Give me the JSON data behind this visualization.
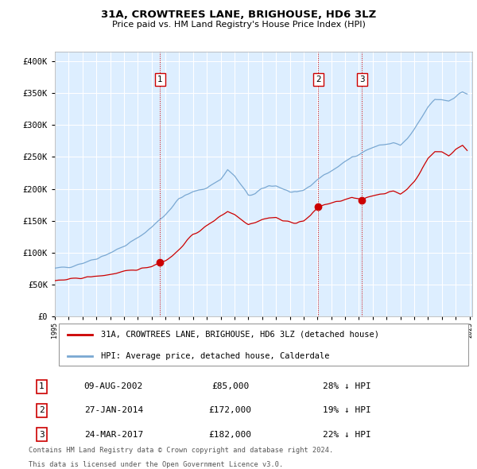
{
  "title": "31A, CROWTREES LANE, BRIGHOUSE, HD6 3LZ",
  "subtitle": "Price paid vs. HM Land Registry's House Price Index (HPI)",
  "plot_bg_color": "#ddeeff",
  "ylabel_ticks": [
    "£0",
    "£50K",
    "£100K",
    "£150K",
    "£200K",
    "£250K",
    "£300K",
    "£350K",
    "£400K"
  ],
  "ytick_values": [
    0,
    50000,
    100000,
    150000,
    200000,
    250000,
    300000,
    350000,
    400000
  ],
  "ylim": [
    0,
    415000
  ],
  "xlim_start": 1995.0,
  "xlim_end": 2025.2,
  "sale_year_floats": [
    2002.604,
    2014.069,
    2017.22
  ],
  "sale_prices": [
    85000,
    172000,
    182000
  ],
  "sale_labels": [
    "1",
    "2",
    "3"
  ],
  "sale_label_info": [
    {
      "label": "1",
      "date": "09-AUG-2002",
      "price": "£85,000",
      "pct": "28%",
      "dir": "↓"
    },
    {
      "label": "2",
      "date": "27-JAN-2014",
      "price": "£172,000",
      "pct": "19%",
      "dir": "↓"
    },
    {
      "label": "3",
      "date": "24-MAR-2017",
      "price": "£182,000",
      "pct": "22%",
      "dir": "↓"
    }
  ],
  "red_line_label": "31A, CROWTREES LANE, BRIGHOUSE, HD6 3LZ (detached house)",
  "blue_line_label": "HPI: Average price, detached house, Calderdale",
  "footer1": "Contains HM Land Registry data © Crown copyright and database right 2024.",
  "footer2": "This data is licensed under the Open Government Licence v3.0.",
  "red_color": "#cc0000",
  "blue_color": "#7aa8d2",
  "vline_color": "#cc0000",
  "marker_color": "#cc0000",
  "box_edge_color": "#cc0000",
  "grid_color": "#ffffff"
}
